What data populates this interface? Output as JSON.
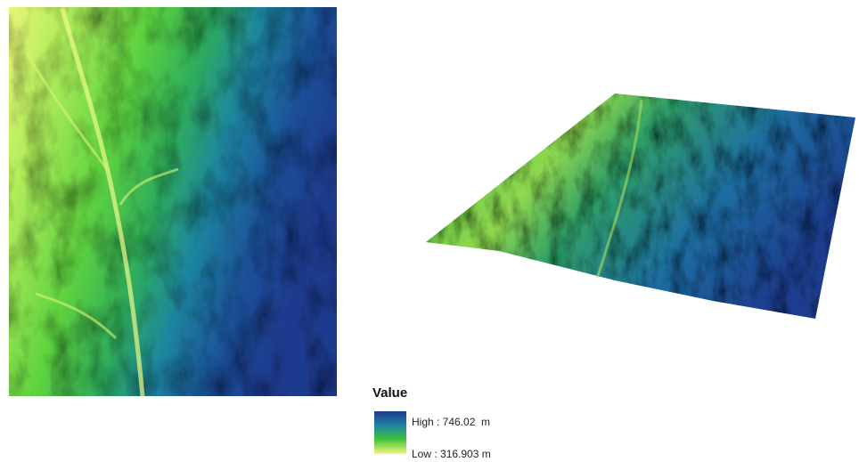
{
  "legend": {
    "title": "Value",
    "high": "High : 746.02  m",
    "low": "Low : 316.903 m"
  }
}
